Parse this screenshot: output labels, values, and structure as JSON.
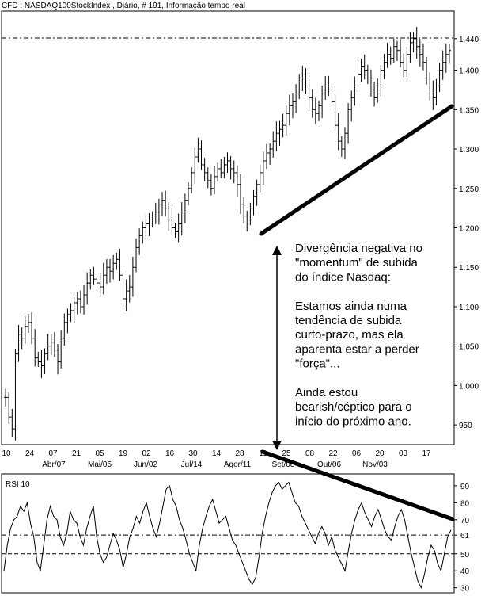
{
  "header": {
    "title": "CFD : NASDAQ100StockIndex , Diário, # 191, Informação tempo real"
  },
  "annotation": {
    "lines": [
      "Divergência negativa no",
      "\"momentum\" de subida",
      "do índice Nasdaq:",
      "",
      "Estamos ainda numa",
      "tendência de subida",
      "curto-prazo, mas ela",
      "aparenta estar a perder",
      "\"força\"...",
      "",
      "Ainda estou",
      "bearish/céptico para o",
      "início do próximo ano."
    ]
  },
  "chart_data": [
    {
      "type": "ohlc",
      "yticks": [
        "1.440",
        "1.400",
        "1.350",
        "1.300",
        "1.250",
        "1.200",
        "1.150",
        "1.100",
        "1.050",
        "1.000",
        "950"
      ],
      "ylim": [
        925,
        1475
      ],
      "reference_line": 1445,
      "xticks_top": [
        "10",
        "24",
        "07",
        "21",
        "05",
        "19",
        "02",
        "16",
        "30",
        "14",
        "28",
        "11",
        "25",
        "08",
        "22",
        "06",
        "20",
        "03",
        "17"
      ],
      "xticks_bottom": [
        "Abr/07",
        "Mai/05",
        "Jun/02",
        "Jul/14",
        "Agor/11",
        "Set/08",
        "Out/06",
        "Nov/03"
      ],
      "close_values": [
        985,
        960,
        945,
        1040,
        1065,
        1060,
        1075,
        1080,
        1060,
        1035,
        1030,
        1025,
        1040,
        1050,
        1055,
        1045,
        1030,
        1060,
        1080,
        1090,
        1095,
        1105,
        1110,
        1100,
        1115,
        1130,
        1140,
        1135,
        1130,
        1125,
        1140,
        1150,
        1145,
        1155,
        1160,
        1140,
        1110,
        1120,
        1125,
        1150,
        1175,
        1190,
        1200,
        1205,
        1210,
        1215,
        1220,
        1230,
        1235,
        1225,
        1210,
        1200,
        1195,
        1205,
        1220,
        1235,
        1250,
        1270,
        1290,
        1300,
        1280,
        1270,
        1260,
        1250,
        1265,
        1275,
        1270,
        1280,
        1285,
        1275,
        1270,
        1255,
        1230,
        1215,
        1210,
        1225,
        1240,
        1255,
        1270,
        1285,
        1295,
        1300,
        1310,
        1320,
        1325,
        1330,
        1345,
        1355,
        1360,
        1370,
        1385,
        1390,
        1380,
        1365,
        1350,
        1345,
        1355,
        1370,
        1380,
        1375,
        1360,
        1330,
        1310,
        1300,
        1320,
        1350,
        1365,
        1380,
        1395,
        1405,
        1400,
        1390,
        1375,
        1365,
        1380,
        1400,
        1410,
        1420,
        1415,
        1430,
        1425,
        1410,
        1400,
        1420,
        1435,
        1440,
        1430,
        1420,
        1410,
        1390,
        1375,
        1365,
        1380,
        1400,
        1410,
        1420,
        1425
      ]
    },
    {
      "type": "line",
      "title": "RSI 10",
      "yticks": [
        "90",
        "80",
        "70",
        "61",
        "50",
        "40",
        "30"
      ],
      "ylim": [
        28,
        96
      ],
      "reference_lines": [
        61,
        50
      ],
      "values": [
        40,
        55,
        65,
        70,
        72,
        78,
        75,
        80,
        68,
        60,
        45,
        40,
        55,
        70,
        78,
        72,
        70,
        60,
        55,
        62,
        75,
        70,
        68,
        60,
        55,
        65,
        72,
        78,
        60,
        50,
        45,
        48,
        55,
        62,
        58,
        52,
        42,
        50,
        60,
        65,
        72,
        68,
        75,
        80,
        72,
        65,
        60,
        68,
        78,
        88,
        90,
        82,
        78,
        70,
        65,
        58,
        50,
        45,
        40,
        55,
        65,
        72,
        78,
        82,
        75,
        68,
        70,
        72,
        65,
        58,
        55,
        50,
        45,
        40,
        35,
        32,
        36,
        48,
        62,
        72,
        80,
        86,
        90,
        92,
        88,
        90,
        92,
        86,
        80,
        78,
        72,
        68,
        64,
        60,
        56,
        62,
        66,
        62,
        55,
        60,
        52,
        48,
        44,
        40,
        52,
        62,
        70,
        76,
        80,
        74,
        70,
        66,
        72,
        76,
        70,
        64,
        60,
        58,
        66,
        72,
        76,
        70,
        60,
        50,
        42,
        34,
        30,
        38,
        48,
        55,
        52,
        44,
        40,
        50,
        60,
        64
      ]
    }
  ]
}
